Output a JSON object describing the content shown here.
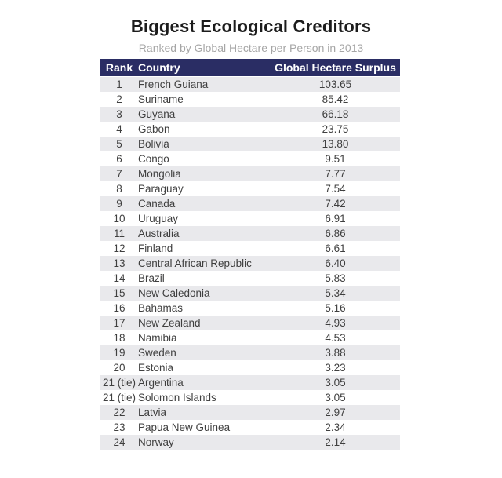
{
  "title": "Biggest Ecological Creditors",
  "subtitle": "Ranked by Global Hectare per Person in 2013",
  "colors": {
    "header_bg": "#2a2d64",
    "header_text": "#ffffff",
    "row_alt_bg": "#e9e9ec",
    "row_bg": "#ffffff",
    "title_text": "#1c1c1c",
    "subtitle_text": "#a6a6a6",
    "body_text": "#3f3f3f"
  },
  "chart_data": {
    "type": "table",
    "title": "Biggest Ecological Creditors",
    "subtitle": "Ranked by Global Hectare per Person in 2013",
    "columns": [
      "Rank",
      "Country",
      "Global Hectare Surplus"
    ],
    "rows": [
      {
        "rank": "1",
        "country": "French Guiana",
        "surplus": "103.65"
      },
      {
        "rank": "2",
        "country": "Suriname",
        "surplus": "85.42"
      },
      {
        "rank": "3",
        "country": "Guyana",
        "surplus": "66.18"
      },
      {
        "rank": "4",
        "country": "Gabon",
        "surplus": "23.75"
      },
      {
        "rank": "5",
        "country": "Bolivia",
        "surplus": "13.80"
      },
      {
        "rank": "6",
        "country": "Congo",
        "surplus": "9.51"
      },
      {
        "rank": "7",
        "country": "Mongolia",
        "surplus": "7.77"
      },
      {
        "rank": "8",
        "country": "Paraguay",
        "surplus": "7.54"
      },
      {
        "rank": "9",
        "country": "Canada",
        "surplus": "7.42"
      },
      {
        "rank": "10",
        "country": "Uruguay",
        "surplus": "6.91"
      },
      {
        "rank": "11",
        "country": "Australia",
        "surplus": "6.86"
      },
      {
        "rank": "12",
        "country": "Finland",
        "surplus": "6.61"
      },
      {
        "rank": "13",
        "country": "Central African Republic",
        "surplus": "6.40"
      },
      {
        "rank": "14",
        "country": "Brazil",
        "surplus": "5.83"
      },
      {
        "rank": "15",
        "country": "New Caledonia",
        "surplus": "5.34"
      },
      {
        "rank": "16",
        "country": "Bahamas",
        "surplus": "5.16"
      },
      {
        "rank": "17",
        "country": "New Zealand",
        "surplus": "4.93"
      },
      {
        "rank": "18",
        "country": "Namibia",
        "surplus": "4.53"
      },
      {
        "rank": "19",
        "country": "Sweden",
        "surplus": "3.88"
      },
      {
        "rank": "20",
        "country": "Estonia",
        "surplus": "3.23"
      },
      {
        "rank": "21 (tie)",
        "country": "Argentina",
        "surplus": "3.05"
      },
      {
        "rank": "21 (tie)",
        "country": "Solomon Islands",
        "surplus": "3.05"
      },
      {
        "rank": "22",
        "country": "Latvia",
        "surplus": "2.97"
      },
      {
        "rank": "23",
        "country": "Papua New Guinea",
        "surplus": "2.34"
      },
      {
        "rank": "24",
        "country": "Norway",
        "surplus": "2.14"
      }
    ]
  }
}
